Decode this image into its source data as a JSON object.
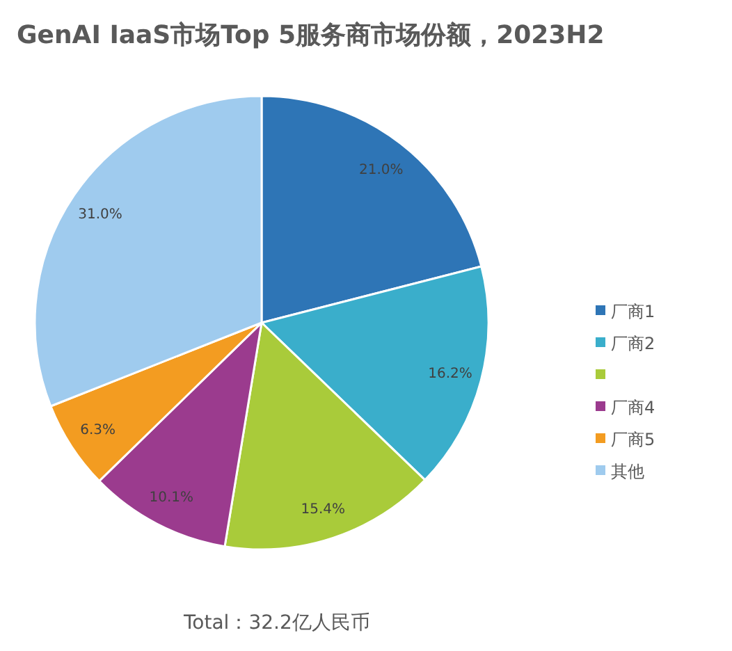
{
  "chart_data": {
    "type": "pie",
    "title": "GenAI IaaS市场Top 5服务商市场份额，2023H2",
    "categories": [
      "厂商1",
      "厂商2",
      null,
      "厂商4",
      "厂商5",
      "其他"
    ],
    "values": [
      21.0,
      16.2,
      15.4,
      10.1,
      6.3,
      31.0
    ],
    "colors": [
      "#2e75b6",
      "#3aaecb",
      "#a9cb3a",
      "#9b3b8e",
      "#f39c21",
      "#9fcbee"
    ],
    "value_labels": [
      "21.0%",
      "16.2%",
      "15.4%",
      "10.1%",
      "6.3%",
      "31.0%"
    ],
    "legend": "right",
    "annotations": [
      "Total：32.2亿人民币"
    ]
  }
}
